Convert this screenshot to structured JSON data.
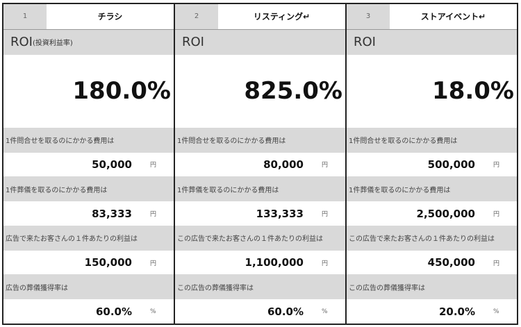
{
  "columns": [
    {
      "number": "1",
      "title": "チラシ",
      "roi_label": "ROI",
      "roi_sub": "(投資利益率)",
      "roi_value": "180.0%",
      "rows": [
        {
          "label": "1件問合せを取るのにかかる費用は",
          "value": "50,000",
          "unit": "円"
        },
        {
          "label": "1件葬儀を取るのにかかる費用は",
          "value": "83,333",
          "unit": "円"
        },
        {
          "label": "広告で来たお客さんの１件あたりの利益は",
          "value": "150,000",
          "unit": "円"
        },
        {
          "label": "広告の葬儀獲得率は",
          "value": "60.0%",
          "unit": "%"
        }
      ]
    },
    {
      "number": "2",
      "title": "リスティング↵",
      "roi_label": "ROI",
      "roi_sub": "",
      "roi_value": "825.0%",
      "rows": [
        {
          "label": "1件問合せを取るのにかかる費用は",
          "value": "80,000",
          "unit": "円"
        },
        {
          "label": "1件葬儀を取るのにかかる費用は",
          "value": "133,333",
          "unit": "円"
        },
        {
          "label": "この広告で来たお客さんの１件あたりの利益は",
          "value": "1,100,000",
          "unit": "円"
        },
        {
          "label": "この広告の葬儀獲得率は",
          "value": "60.0%",
          "unit": "%"
        }
      ]
    },
    {
      "number": "3",
      "title": "ストアイベント↵",
      "roi_label": "ROI",
      "roi_sub": "",
      "roi_value": "18.0%",
      "rows": [
        {
          "label": "1件問合せを取るのにかかる費用は",
          "value": "500,000",
          "unit": "円"
        },
        {
          "label": "1件葬儀を取るのにかかる費用は",
          "value": "2,500,000",
          "unit": "円"
        },
        {
          "label": "この広告で来たお客さんの１件あたりの利益は",
          "value": "450,000",
          "unit": "円"
        },
        {
          "label": "この広告の葬儀獲得率は",
          "value": "20.0%",
          "unit": "%"
        }
      ]
    }
  ]
}
